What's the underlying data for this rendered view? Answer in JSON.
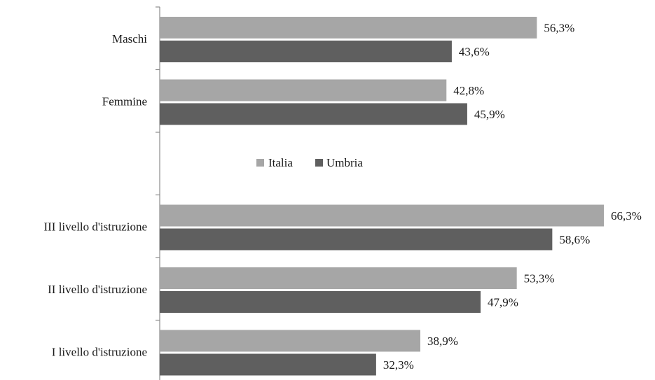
{
  "chart_data": {
    "type": "bar",
    "orientation": "horizontal",
    "categories": [
      "Maschi",
      "Femmine",
      "",
      "III livello d'istruzione",
      "II livello d'istruzione",
      "I livello d'istruzione"
    ],
    "series": [
      {
        "name": "Italia",
        "color": "#a6a6a6",
        "values": [
          56.3,
          42.8,
          null,
          66.3,
          53.3,
          38.9
        ],
        "labels": [
          "56,3%",
          "42,8%",
          "",
          "66,3%",
          "53,3%",
          "38,9%"
        ]
      },
      {
        "name": "Umbria",
        "color": "#5f5f5f",
        "values": [
          43.6,
          45.9,
          null,
          58.6,
          47.9,
          32.3
        ],
        "labels": [
          "43,6%",
          "45,9%",
          "",
          "58,6%",
          "47,9%",
          "32,3%"
        ]
      }
    ],
    "xlim": [
      0,
      70
    ],
    "legend": {
      "placement": "center",
      "entries": [
        "Italia",
        "Umbria"
      ]
    },
    "grid": false,
    "title": "",
    "xlabel": "",
    "ylabel": ""
  }
}
